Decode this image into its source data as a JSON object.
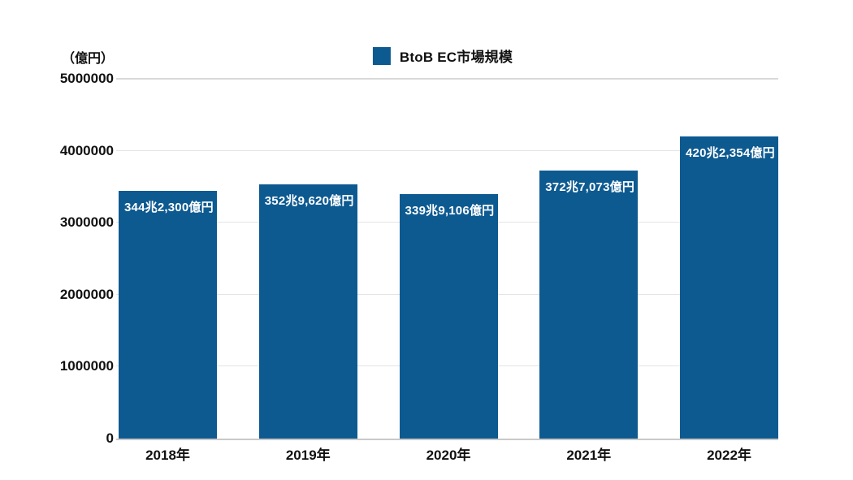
{
  "chart_data": {
    "type": "bar",
    "title": "",
    "unit_label": "（億円）",
    "legend": {
      "label": "BtoB EC市場規模",
      "position": "top-center"
    },
    "categories": [
      "2018年",
      "2019年",
      "2020年",
      "2021年",
      "2022年"
    ],
    "series": [
      {
        "name": "BtoB EC市場規模",
        "values": [
          3442300,
          3529620,
          3399106,
          3727073,
          4202354
        ]
      }
    ],
    "bar_labels": [
      "344兆2,300億円",
      "352兆9,620億円",
      "339兆9,106億円",
      "372兆7,073億円",
      "420兆2,354億円"
    ],
    "ylim": [
      0,
      5000000
    ],
    "yticks": [
      {
        "value": 0,
        "label": "0"
      },
      {
        "value": 1000000,
        "label": "1000000"
      },
      {
        "value": 2000000,
        "label": "2000000"
      },
      {
        "value": 3000000,
        "label": "3000000"
      },
      {
        "value": 4000000,
        "label": "4000000"
      },
      {
        "value": 5000000,
        "label": "5000000"
      }
    ],
    "grid": true,
    "colors": {
      "bar": "#0D5A91",
      "grid": "#E4E4E4",
      "grid_top": "#D9D9D9",
      "baseline": "#C9C9C9",
      "text": "#111111",
      "bar_label": "#FFFFFF",
      "background": "#FFFFFF"
    }
  }
}
